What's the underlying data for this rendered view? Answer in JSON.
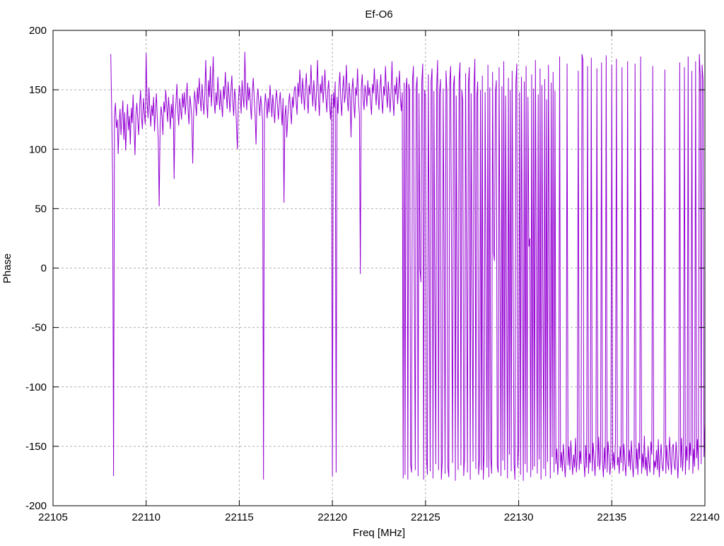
{
  "window": {
    "background": "#ffffff"
  },
  "chart_data": {
    "type": "line",
    "title": "Ef-O6",
    "xlabel": "Freq [MHz]",
    "ylabel": "Phase",
    "xlim": [
      22105,
      22140
    ],
    "ylim": [
      -200,
      200
    ],
    "x_ticks": [
      22105,
      22110,
      22115,
      22120,
      22125,
      22130,
      22135,
      22140
    ],
    "y_ticks": [
      -200,
      -150,
      -100,
      -50,
      0,
      50,
      100,
      150,
      200
    ],
    "grid": true,
    "grid_style": "dashed",
    "grid_color": "#b0b0b0",
    "frame_color": "#000000",
    "line_color": "#9400d3",
    "legend": "none",
    "series": [
      {
        "name": "phase",
        "x_start": 22108.1,
        "x_step": 0.05,
        "y": [
          180,
          132,
          75,
          -175,
          128,
          139,
          118,
          125,
          96,
          122,
          134,
          112,
          126,
          141,
          108,
          131,
          99,
          120,
          138,
          116,
          128,
          104,
          135,
          122,
          146,
          118,
          95,
          129,
          139,
          125,
          112,
          136,
          150,
          127,
          117,
          143,
          131,
          121,
          181,
          140,
          126,
          152,
          133,
          119,
          137,
          128,
          144,
          115,
          133,
          147,
          125,
          108,
          52,
          121,
          136,
          128,
          112,
          140,
          131,
          150,
          137,
          123,
          144,
          132,
          117,
          138,
          126,
          146,
          75,
          128,
          139,
          155,
          132,
          120,
          143,
          134,
          125,
          147,
          135,
          148,
          129,
          142,
          156,
          133,
          121,
          145,
          137,
          126,
          88,
          131,
          149,
          140,
          128,
          152,
          138,
          160,
          143,
          132,
          155,
          141,
          129,
          147,
          175,
          139,
          126,
          158,
          144,
          170,
          136,
          152,
          178,
          141,
          130,
          148,
          137,
          161,
          145,
          133,
          150,
          138,
          127,
          153,
          142,
          165,
          148,
          134,
          157,
          145,
          131,
          149,
          162,
          140,
          128,
          151,
          143,
          119,
          100,
          139,
          154,
          146,
          130,
          158,
          144,
          135,
          182,
          147,
          133,
          156,
          141,
          152,
          138,
          125,
          149,
          160,
          143,
          129,
          104,
          142,
          151,
          139,
          128,
          145,
          136,
          124,
          -178,
          133,
          147,
          138,
          126,
          143,
          131,
          154,
          140,
          127,
          146,
          135,
          122,
          141,
          150,
          137,
          125,
          139,
          148,
          132,
          120,
          143,
          55,
          128,
          137,
          110,
          126,
          139,
          147,
          133,
          121,
          144,
          135,
          150,
          153,
          141,
          129,
          156,
          144,
          167,
          151,
          138,
          160,
          147,
          133,
          152,
          164,
          142,
          130,
          154,
          146,
          171,
          149,
          136,
          158,
          145,
          132,
          150,
          175,
          143,
          128,
          155,
          147,
          162,
          139,
          151,
          167,
          144,
          131,
          149,
          158,
          137,
          125,
          146,
          -175,
          148,
          135,
          157,
          -172,
          144,
          130,
          153,
          165,
          141,
          128,
          150,
          162,
          139,
          147,
          171,
          143,
          132,
          156,
          144,
          110,
          149,
          160,
          138,
          126,
          152,
          145,
          168,
          140,
          129,
          -5,
          151,
          163,
          142,
          133,
          154,
          147,
          136,
          158,
          145,
          152,
          140,
          129,
          155,
          147,
          168,
          150,
          137,
          159,
          146,
          133,
          151,
          163,
          141,
          130,
          153,
          145,
          170,
          148,
          135,
          157,
          144,
          131,
          149,
          174,
          142,
          128,
          154,
          146,
          161,
          138,
          150,
          166,
          143,
          132,
          148,
          -177,
          156,
          -174,
          151,
          160,
          -178,
          155,
          148,
          -165,
          -172,
          158,
          170,
          -15,
          -170,
          152,
          161,
          -175,
          147,
          0,
          -12,
          156,
          172,
          -178,
          150,
          144,
          -160,
          -174,
          163,
          8,
          -171,
          157,
          168,
          -177,
          149,
          -20,
          -165,
          154,
          175,
          -170,
          146,
          159,
          -178,
          -162,
          151,
          12,
          -173,
          166,
          148,
          -168,
          -176,
          157,
          170,
          -10,
          -164,
          153,
          162,
          -179,
          145,
          -25,
          -170,
          158,
          173,
          -166,
          150,
          140,
          -175,
          -158,
          164,
          5,
          -172,
          155,
          169,
          -178,
          147,
          -18,
          -163,
          152,
          176,
          -169,
          143,
          157,
          -174,
          -161,
          150,
          -170,
          162,
          -178,
          -155,
          148,
          0,
          -168,
          171,
          -176,
          152,
          -160,
          -173,
          165,
          14,
          6,
          147,
          158,
          -166,
          -172,
          169,
          -8,
          -175,
          153,
          -162,
          174,
          -170,
          145,
          -22,
          -177,
          160,
          -157,
          150,
          -171,
          166,
          3,
          -164,
          -178,
          155,
          172,
          -168,
          -150,
          148,
          -174,
          161,
          -12,
          -179,
          157,
          -165,
          170,
          -172,
          144,
          18,
          25,
          -176,
          163,
          -170,
          151,
          -167,
          175,
          -5,
          -173,
          146,
          -161,
          168,
          -178,
          154,
          -25,
          -169,
          159,
          -175,
          142,
          -163,
          171,
          10,
          -177,
          156,
          -159,
          165,
          -172,
          149,
          -165,
          -152,
          -174,
          -160,
          178,
          -168,
          -155,
          -171,
          -148,
          -163,
          -176,
          -158,
          172,
          -166,
          -150,
          -170,
          -145,
          -161,
          -174,
          -157,
          -168,
          -143,
          -172,
          -159,
          166,
          -170,
          -154,
          -165,
          180,
          175,
          -162,
          -176,
          -149,
          -168,
          170,
          -173,
          -156,
          -164,
          177,
          -171,
          -147,
          -160,
          -175,
          -153,
          168,
          -167,
          -142,
          -170,
          -158,
          173,
          -163,
          -176,
          -151,
          -169,
          179,
          -172,
          -146,
          -157,
          -174,
          -162,
          171,
          -168,
          -155,
          -170,
          -144,
          176,
          -166,
          -159,
          -173,
          -150,
          -164,
          169,
          -171,
          -148,
          -162,
          -175,
          -156,
          174,
          -167,
          -153,
          -170,
          -145,
          -163,
          -176,
          -158,
          172,
          -169,
          -152,
          -174,
          -147,
          -161,
          178,
          -173,
          -156,
          -168,
          -141,
          -170,
          -159,
          -175,
          -150,
          -164,
          -172,
          -146,
          -157,
          170,
          -174,
          -162,
          -168,
          -153,
          -170,
          -144,
          -176,
          -160,
          -148,
          -166,
          -171,
          -155,
          167,
          -173,
          -149,
          -163,
          -170,
          -142,
          -158,
          -174,
          -151,
          -148,
          -165,
          -170,
          -146,
          -160,
          -177,
          -154,
          173,
          -168,
          -143,
          -171,
          -156,
          169,
          -174,
          -150,
          -162,
          178,
          -170,
          -147,
          -158,
          166,
          -173,
          -152,
          -167,
          174,
          -160,
          -144,
          -170,
          180,
          162,
          -165,
          171,
          158,
          -159,
          -130
        ]
      }
    ]
  }
}
